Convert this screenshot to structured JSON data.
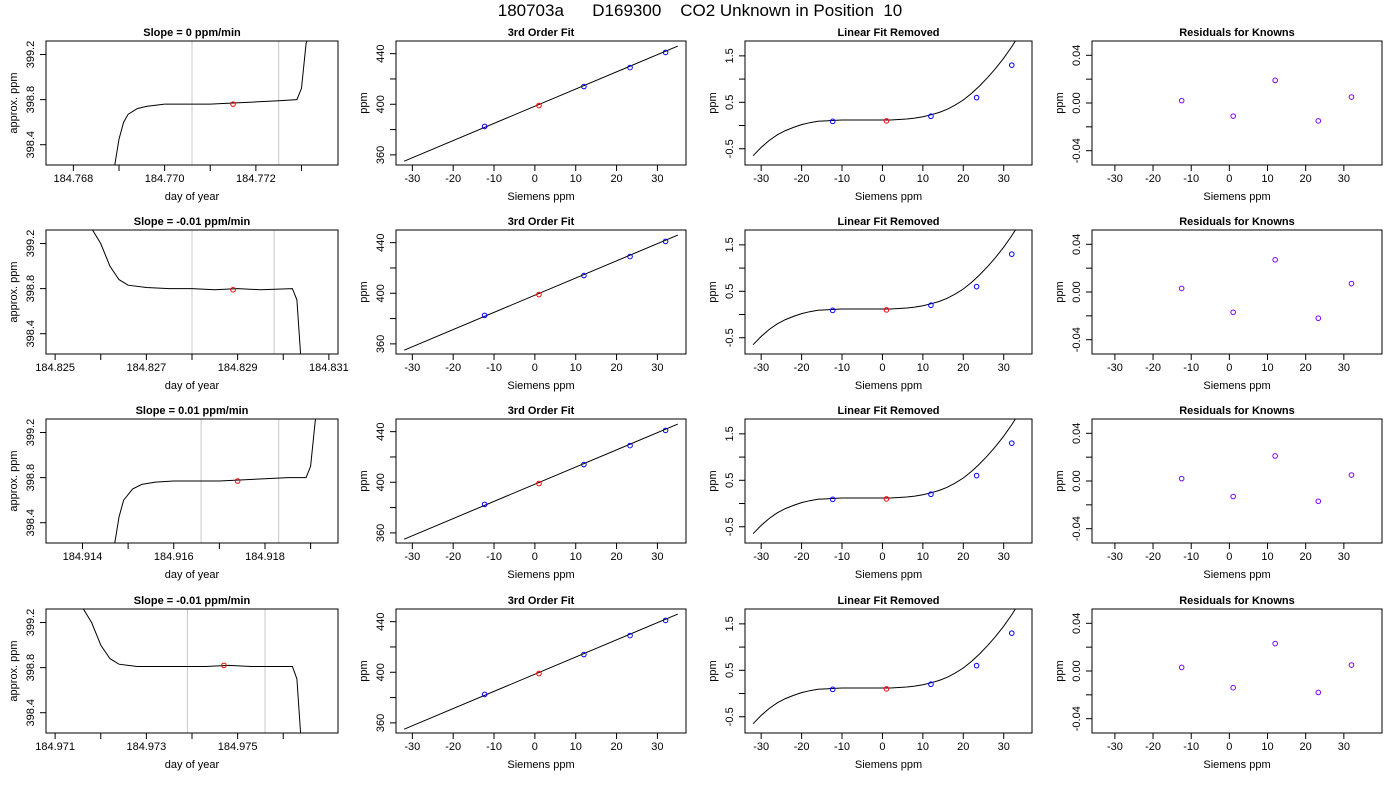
{
  "page": {
    "title_parts": [
      "180703a",
      "D169300",
      "CO2 Unknown in Position  10"
    ]
  },
  "colors": {
    "line": "#000000",
    "window": "#c8c8c8",
    "unknown_point": "#ff0000",
    "known_point": "#0000ff",
    "residual_point": "#7f00ff"
  },
  "chart_data": [
    {
      "row": 1,
      "type": "line",
      "title": "Slope =  0  ppm/min",
      "xlabel": "day of year",
      "ylabel": "approx. ppm",
      "xlim": [
        184.7674,
        184.7738
      ],
      "ylim": [
        398.22,
        399.32
      ],
      "xticks": [
        "184.768",
        "184.770",
        "184.772"
      ],
      "xtick_values": [
        184.768,
        184.77,
        184.772
      ],
      "xminor_ticks": [
        184.769,
        184.771,
        184.773
      ],
      "yticks": [
        "398.4",
        "398.8",
        "399.2"
      ],
      "ytick_values": [
        398.4,
        398.8,
        399.2
      ],
      "window": [
        184.7706,
        184.7725
      ],
      "series_x": [
        184.7689,
        184.769,
        184.7691,
        184.7692,
        184.7694,
        184.7696,
        184.77,
        184.7705,
        184.771,
        184.7715,
        184.772,
        184.7725,
        184.7729,
        184.773,
        184.7731,
        184.7733
      ],
      "series_y": [
        398.2,
        398.45,
        398.6,
        398.67,
        398.72,
        398.74,
        398.76,
        398.76,
        398.76,
        398.77,
        398.78,
        398.79,
        398.8,
        398.9,
        399.3,
        399.5
      ],
      "point": {
        "x": 184.7715,
        "y": 398.76
      }
    },
    {
      "row": 2,
      "type": "line",
      "title": "Slope =  -0.01  ppm/min",
      "xlabel": "day of year",
      "ylabel": "approx. ppm",
      "xlim": [
        184.8248,
        184.8312
      ],
      "ylim": [
        398.22,
        399.32
      ],
      "xticks": [
        "184.825",
        "184.827",
        "184.829",
        "184.831"
      ],
      "xtick_values": [
        184.825,
        184.827,
        184.829,
        184.831
      ],
      "xminor_ticks": [
        184.826,
        184.828,
        184.83
      ],
      "yticks": [
        "398.4",
        "398.8",
        "399.2"
      ],
      "ytick_values": [
        398.4,
        398.8,
        399.2
      ],
      "window": [
        184.828,
        184.8298
      ],
      "series_x": [
        184.8257,
        184.826,
        184.8262,
        184.8264,
        184.8266,
        184.827,
        184.8275,
        184.828,
        184.8285,
        184.829,
        184.8295,
        184.8302,
        184.8303,
        184.8304
      ],
      "series_y": [
        399.4,
        399.2,
        399.0,
        398.88,
        398.83,
        398.81,
        398.8,
        398.8,
        398.79,
        398.8,
        398.79,
        398.8,
        398.7,
        398.1
      ],
      "point": {
        "x": 184.8289,
        "y": 398.79
      }
    },
    {
      "row": 3,
      "type": "line",
      "title": "Slope =  0.01  ppm/min",
      "xlabel": "day of year",
      "ylabel": "approx. ppm",
      "xlim": [
        184.9132,
        184.9196
      ],
      "ylim": [
        398.22,
        399.32
      ],
      "xticks": [
        "184.914",
        "184.916",
        "184.918"
      ],
      "xtick_values": [
        184.914,
        184.916,
        184.918
      ],
      "xminor_ticks": [
        184.915,
        184.917,
        184.919
      ],
      "yticks": [
        "398.4",
        "398.8",
        "399.2"
      ],
      "ytick_values": [
        398.4,
        398.8,
        399.2
      ],
      "window": [
        184.9166,
        184.9183
      ],
      "series_x": [
        184.9147,
        184.9148,
        184.9149,
        184.9151,
        184.9153,
        184.9156,
        184.916,
        184.9165,
        184.917,
        184.9175,
        184.918,
        184.9185,
        184.9189,
        184.919,
        184.9191,
        184.9192
      ],
      "series_y": [
        398.2,
        398.45,
        398.6,
        398.7,
        398.74,
        398.76,
        398.77,
        398.77,
        398.77,
        398.78,
        398.79,
        398.8,
        398.8,
        398.9,
        399.3,
        399.5
      ],
      "point": {
        "x": 184.9174,
        "y": 398.77
      }
    },
    {
      "row": 4,
      "type": "line",
      "title": "Slope =  -0.01  ppm/min",
      "xlabel": "day of year",
      "ylabel": "approx. ppm",
      "xlim": [
        184.9708,
        184.9772
      ],
      "ylim": [
        398.22,
        399.32
      ],
      "xticks": [
        "184.971",
        "184.973",
        "184.975"
      ],
      "xtick_values": [
        184.971,
        184.973,
        184.975
      ],
      "xminor_ticks": [
        184.972,
        184.974,
        184.976
      ],
      "yticks": [
        "398.4",
        "398.8",
        "399.2"
      ],
      "ytick_values": [
        398.4,
        398.8,
        399.2
      ],
      "window": [
        184.9739,
        184.9756
      ],
      "series_x": [
        184.9715,
        184.9718,
        184.972,
        184.9722,
        184.9724,
        184.9728,
        184.9733,
        184.9738,
        184.9743,
        184.9748,
        184.9753,
        184.9758,
        184.9762,
        184.9763,
        184.9764
      ],
      "series_y": [
        399.4,
        399.2,
        399.0,
        398.88,
        398.83,
        398.81,
        398.81,
        398.81,
        398.81,
        398.82,
        398.81,
        398.81,
        398.81,
        398.7,
        398.1
      ],
      "point": {
        "x": 184.9747,
        "y": 398.82
      }
    },
    {
      "type": "scatter",
      "title": "3rd Order Fit",
      "xlabel": "Siemens ppm",
      "ylabel": "ppm",
      "xlim": [
        -34,
        37
      ],
      "ylim": [
        352,
        450
      ],
      "xticks": [
        "-30",
        "-20",
        "-10",
        "0",
        "10",
        "20",
        "30"
      ],
      "xtick_values": [
        -30,
        -20,
        -10,
        0,
        10,
        20,
        30
      ],
      "yticks": [
        "360",
        "400",
        "440"
      ],
      "ytick_values": [
        360,
        400,
        440
      ],
      "yminor_ticks": [
        380,
        420
      ],
      "fit_line": {
        "x": [
          -32,
          35
        ],
        "y": [
          355,
          446
        ]
      },
      "knowns": {
        "x": [
          -12.3,
          12,
          23.3,
          32
        ],
        "y": [
          382.5,
          414,
          429,
          441
        ]
      },
      "unknown": {
        "x": 1,
        "y": 399
      }
    },
    {
      "type": "scatter",
      "title": "Linear Fit Removed",
      "xlabel": "Siemens ppm",
      "ylabel": "ppm",
      "xlim": [
        -34,
        37
      ],
      "ylim": [
        -0.85,
        1.82
      ],
      "xticks": [
        "-30",
        "-20",
        "-10",
        "0",
        "10",
        "20",
        "30"
      ],
      "xtick_values": [
        -30,
        -20,
        -10,
        0,
        10,
        20,
        30
      ],
      "yticks": [
        "-0.5",
        "0.5",
        "1.5"
      ],
      "ytick_values": [
        -0.5,
        0.5,
        1.5
      ],
      "yminor_ticks": [
        0,
        1
      ],
      "curve_x": [
        -32,
        -30,
        -28,
        -26,
        -24,
        -22,
        -20,
        -18,
        -16,
        -14,
        -12,
        -10,
        -8,
        -6,
        -4,
        -2,
        0,
        2,
        4,
        6,
        8,
        10,
        12,
        14,
        16,
        18,
        20,
        22,
        24,
        26,
        28,
        30,
        32,
        34,
        35
      ],
      "curve_y": [
        -0.65,
        -0.47,
        -0.32,
        -0.2,
        -0.11,
        -0.04,
        0.02,
        0.06,
        0.09,
        0.1,
        0.11,
        0.12,
        0.12,
        0.12,
        0.12,
        0.12,
        0.12,
        0.12,
        0.13,
        0.14,
        0.16,
        0.19,
        0.23,
        0.28,
        0.35,
        0.44,
        0.55,
        0.69,
        0.85,
        1.03,
        1.23,
        1.45,
        1.7,
        1.97,
        2.1
      ],
      "knowns": {
        "x": [
          -12.3,
          12,
          23.3,
          32
        ],
        "y": [
          0.09,
          0.2,
          0.6,
          1.3
        ]
      },
      "unknown": {
        "x": 1,
        "y": 0.1
      }
    },
    {
      "type": "scatter",
      "title": "Residuals for Knowns",
      "xlabel": "Siemens ppm",
      "ylabel": "ppm",
      "xlim": [
        -36,
        40
      ],
      "ylim": [
        -0.052,
        0.052
      ],
      "xticks": [
        "-30",
        "-20",
        "-10",
        "0",
        "10",
        "20",
        "30"
      ],
      "xtick_values": [
        -30,
        -20,
        -10,
        0,
        10,
        20,
        30
      ],
      "yticks": [
        "-0.04",
        "0.00",
        "0.04"
      ],
      "ytick_values": [
        -0.04,
        0,
        0.04
      ],
      "yminor_ticks": [
        -0.02,
        0.02
      ],
      "points_rows": [
        {
          "x": [
            -12.5,
            1,
            12,
            23.3,
            32
          ],
          "y": [
            0.002,
            -0.011,
            0.019,
            -0.015,
            0.005
          ]
        },
        {
          "x": [
            -12.5,
            1,
            12,
            23.3,
            32
          ],
          "y": [
            0.003,
            -0.017,
            0.027,
            -0.022,
            0.007
          ]
        },
        {
          "x": [
            -12.5,
            1,
            12,
            23.3,
            32
          ],
          "y": [
            0.002,
            -0.013,
            0.021,
            -0.017,
            0.005
          ]
        },
        {
          "x": [
            -12.5,
            1,
            12,
            23.3,
            32
          ],
          "y": [
            0.003,
            -0.014,
            0.023,
            -0.018,
            0.005
          ]
        }
      ]
    }
  ]
}
